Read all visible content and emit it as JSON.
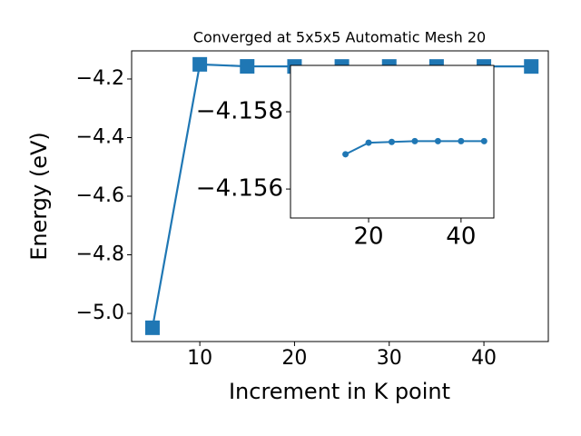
{
  "chart_data": [
    {
      "type": "line",
      "title": "Converged at 5x5x5 Automatic Mesh 20",
      "x_label": "Increment in K point",
      "y_label": "Energy (eV)",
      "x": [
        5,
        10,
        15,
        20,
        25,
        30,
        35,
        40,
        45
      ],
      "series": [
        {
          "color": "#1f77b4",
          "marker": "square",
          "values": [
            -5.049,
            -4.15,
            -4.1569,
            -4.1572,
            -4.1572,
            -4.1572,
            -4.1572,
            -4.1572,
            -4.1572
          ]
        }
      ],
      "xlim": [
        2.8,
        46.8
      ],
      "ylim": [
        -5.096,
        -4.104
      ],
      "xticks": [
        10,
        20,
        30,
        40
      ],
      "yticks": [
        {
          "value": -5.0,
          "label": "−5.0"
        },
        {
          "value": -4.8,
          "label": "−4.8"
        },
        {
          "value": -4.6,
          "label": "−4.6"
        },
        {
          "value": -4.4,
          "label": "−4.4"
        },
        {
          "value": -4.2,
          "label": "−4.2"
        }
      ]
    },
    {
      "type": "line",
      "x": [
        15,
        20,
        25,
        30,
        35,
        40,
        45
      ],
      "series": [
        {
          "color": "#1f77b4",
          "marker": "circle",
          "values": [
            -4.1569,
            -4.1572,
            -4.15722,
            -4.15724,
            -4.15724,
            -4.15724,
            -4.15724
          ]
        }
      ],
      "xlim": [
        3.1,
        47.1
      ],
      "ylim": [
        -4.15525,
        -4.1592
      ],
      "xticks": [
        20,
        40
      ],
      "yticks": [
        {
          "value": -4.158,
          "label": "−4.158"
        },
        {
          "value": -4.156,
          "label": "−4.156"
        }
      ]
    }
  ]
}
